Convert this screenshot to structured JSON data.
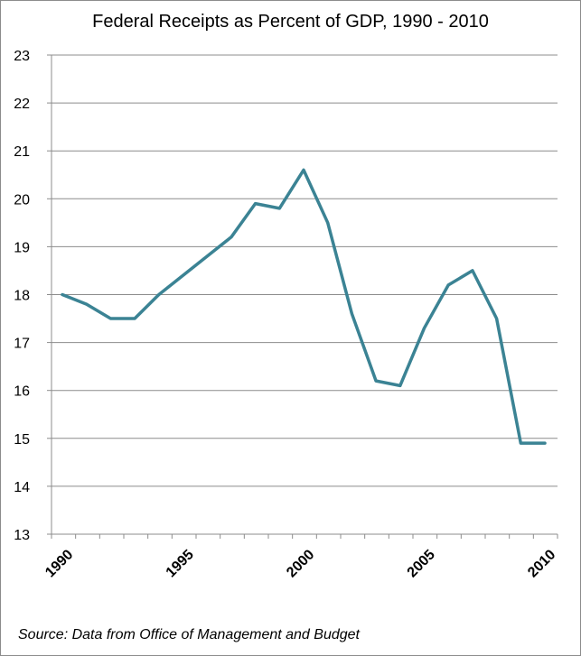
{
  "chart_data": {
    "type": "line",
    "title": "Federal Receipts as Percent of GDP, 1990 - 2010",
    "source": "Source: Data from Office of Management and Budget",
    "x": [
      1990,
      1991,
      1992,
      1993,
      1994,
      1995,
      1996,
      1997,
      1998,
      1999,
      2000,
      2001,
      2002,
      2003,
      2004,
      2005,
      2006,
      2007,
      2008,
      2009,
      2010
    ],
    "series": [
      {
        "values": [
          18.0,
          17.8,
          17.5,
          17.5,
          18.0,
          18.4,
          18.8,
          19.2,
          19.9,
          19.8,
          20.6,
          19.5,
          17.6,
          16.2,
          16.1,
          17.3,
          18.2,
          18.5,
          17.5,
          14.9,
          14.9
        ],
        "color": "#3b8394"
      }
    ],
    "xlabel": "",
    "ylabel": "",
    "xlim": [
      1990,
      2010
    ],
    "ylim": [
      13,
      23
    ],
    "y_ticks": [
      "13",
      "14",
      "15",
      "16",
      "17",
      "18",
      "19",
      "20",
      "21",
      "22",
      "23"
    ],
    "x_ticks": [
      "1990",
      "1995",
      "2000",
      "2005",
      "2010"
    ],
    "grid": true,
    "gridline_color": "#8c8c8c"
  }
}
